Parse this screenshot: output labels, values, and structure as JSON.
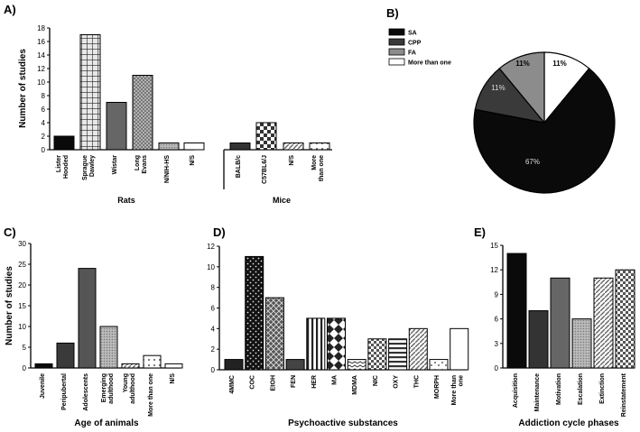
{
  "panel_labels": {
    "a": "A)",
    "b": "B)",
    "c": "C)",
    "d": "D)",
    "e": "E)"
  },
  "chart_data": [
    {
      "id": "A",
      "type": "bar",
      "title": "",
      "ylabel": "Number of studies",
      "ylim": [
        0,
        18
      ],
      "yticks": [
        "0",
        "2",
        "4",
        "6",
        "8",
        "10",
        "12",
        "14",
        "16",
        "18"
      ],
      "groups": [
        {
          "label": "Rats",
          "categories": [
            "Lister Hooded",
            "Sprague Dawley",
            "Wistar",
            "Long Evans",
            "N/NIH-HS",
            "N/S"
          ],
          "values": [
            2,
            17,
            7,
            11,
            1,
            1
          ]
        },
        {
          "label": "Mice",
          "categories": [
            "BALB/c",
            "C57BL6/J",
            "N/S",
            "More than one"
          ],
          "values": [
            1,
            4,
            1,
            1
          ]
        }
      ]
    },
    {
      "id": "B",
      "type": "pie",
      "legend": [
        "SA",
        "CPP",
        "FA",
        "More than one"
      ],
      "values": [
        67,
        11,
        11,
        11
      ],
      "labels": [
        "67%",
        "11%",
        "11%",
        "11%"
      ],
      "colors": [
        "#0a0a0a",
        "#3a3a3a",
        "#8c8c8c",
        "#ffffff"
      ]
    },
    {
      "id": "C",
      "type": "bar",
      "xlabel": "Age of animals",
      "ylabel": "Number of studies",
      "ylim": [
        0,
        30
      ],
      "yticks": [
        "0",
        "5",
        "10",
        "15",
        "20",
        "25",
        "30"
      ],
      "categories": [
        "Juvenile",
        "Peripubertal",
        "Adolescents",
        "Emerging adulthood",
        "Young adulthood",
        "More than one",
        "N/S"
      ],
      "values": [
        1,
        6,
        24,
        10,
        1,
        3,
        1
      ]
    },
    {
      "id": "D",
      "type": "bar",
      "xlabel": "Psychoactive substances",
      "ylabel": "",
      "ylim": [
        0,
        12
      ],
      "yticks": [
        "0",
        "2",
        "4",
        "6",
        "8",
        "10",
        "12"
      ],
      "categories": [
        "4MMC",
        "COC",
        "EtOH",
        "FEN",
        "HER",
        "MA",
        "MDMA",
        "NIC",
        "OXY",
        "THC",
        "MORPH",
        "More than one"
      ],
      "values": [
        1,
        11,
        7,
        1,
        5,
        5,
        1,
        3,
        3,
        4,
        1,
        4
      ]
    },
    {
      "id": "E",
      "type": "bar",
      "xlabel": "Addiction cycle phases",
      "ylabel": "",
      "ylim": [
        0,
        15
      ],
      "yticks": [
        "0",
        "3",
        "6",
        "9",
        "12",
        "15"
      ],
      "categories": [
        "Acquisition",
        "Maintenance",
        "Motivation",
        "Escalation",
        "Extinction",
        "Reinstatement"
      ],
      "values": [
        14,
        7,
        11,
        6,
        11,
        12
      ]
    }
  ]
}
